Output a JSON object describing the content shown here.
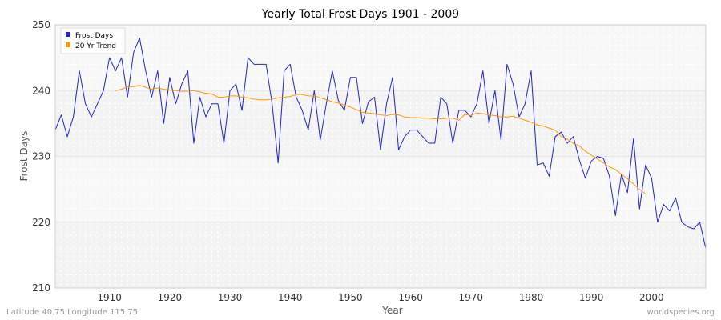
{
  "chart_data": {
    "type": "line",
    "title": "Yearly Total Frost Days 1901 - 2009",
    "xlabel": "Year",
    "ylabel": "Frost Days",
    "xlim": [
      1901,
      2009
    ],
    "ylim": [
      210,
      250
    ],
    "x_ticks": [
      1910,
      1920,
      1930,
      1940,
      1950,
      1960,
      1970,
      1980,
      1990,
      2000
    ],
    "y_ticks": [
      210,
      220,
      230,
      240,
      250
    ],
    "grid": true,
    "legend_position": "top-left",
    "series": [
      {
        "name": "Frost Days",
        "color": "#2222cc",
        "x": [
          1901,
          1902,
          1903,
          1904,
          1905,
          1906,
          1907,
          1908,
          1909,
          1910,
          1911,
          1912,
          1913,
          1914,
          1915,
          1916,
          1917,
          1918,
          1919,
          1920,
          1921,
          1922,
          1923,
          1924,
          1925,
          1926,
          1927,
          1928,
          1929,
          1930,
          1931,
          1932,
          1933,
          1934,
          1935,
          1936,
          1937,
          1938,
          1939,
          1940,
          1941,
          1942,
          1943,
          1944,
          1945,
          1946,
          1947,
          1948,
          1949,
          1950,
          1951,
          1952,
          1953,
          1954,
          1955,
          1956,
          1957,
          1958,
          1959,
          1960,
          1961,
          1962,
          1963,
          1964,
          1965,
          1966,
          1967,
          1968,
          1969,
          1970,
          1971,
          1972,
          1973,
          1974,
          1975,
          1976,
          1977,
          1978,
          1979,
          1980,
          1981,
          1982,
          1983,
          1984,
          1985,
          1986,
          1987,
          1988,
          1989,
          1990,
          1991,
          1992,
          1993,
          1994,
          1995,
          1996,
          1997,
          1998,
          1999,
          2000,
          2001,
          2002,
          2003,
          2004,
          2005,
          2006,
          2007,
          2008,
          2009
        ],
        "y": [
          234,
          236.3,
          233,
          236,
          243,
          238,
          236,
          238,
          240,
          245,
          243,
          245,
          239,
          245.8,
          248,
          243,
          239,
          243,
          235,
          242,
          238,
          241,
          243,
          232,
          239,
          236,
          238,
          238,
          232,
          240,
          241,
          237,
          245,
          244,
          244,
          244,
          238,
          229,
          243,
          244,
          239,
          237,
          234,
          240,
          232.5,
          238,
          243,
          238.5,
          237,
          242,
          242,
          235,
          238.3,
          239,
          231,
          238,
          242,
          231,
          233,
          234,
          234,
          233,
          232,
          232,
          239,
          238,
          232,
          237,
          237,
          236,
          238,
          243,
          235,
          240,
          232.5,
          244,
          241,
          236,
          238,
          243,
          228.7,
          229,
          227,
          233,
          233.7,
          232,
          233,
          229.5,
          226.7,
          229.3,
          230,
          229.7,
          227,
          221,
          227.3,
          224.5,
          232.7,
          222,
          228.7,
          226.7,
          220,
          222.7,
          221.7,
          223.7,
          220,
          219.3,
          219,
          220,
          216
        ]
      },
      {
        "name": "20 Yr Trend",
        "color": "#ff9900",
        "x": [
          1911,
          1912,
          1913,
          1914,
          1915,
          1916,
          1917,
          1918,
          1919,
          1920,
          1921,
          1922,
          1923,
          1924,
          1925,
          1926,
          1927,
          1928,
          1929,
          1930,
          1931,
          1932,
          1933,
          1934,
          1935,
          1936,
          1937,
          1938,
          1939,
          1940,
          1941,
          1942,
          1943,
          1944,
          1945,
          1946,
          1947,
          1948,
          1949,
          1950,
          1951,
          1952,
          1953,
          1954,
          1955,
          1956,
          1957,
          1958,
          1959,
          1960,
          1961,
          1962,
          1963,
          1964,
          1965,
          1966,
          1967,
          1968,
          1969,
          1970,
          1971,
          1972,
          1973,
          1974,
          1975,
          1976,
          1977,
          1978,
          1979,
          1980,
          1981,
          1982,
          1983,
          1984,
          1985,
          1986,
          1987,
          1988,
          1989,
          1990,
          1991,
          1992,
          1993,
          1994,
          1995,
          1996,
          1997,
          1998,
          1999
        ],
        "y": [
          240,
          240.2,
          240.6,
          240.6,
          240.8,
          240.5,
          240.2,
          240.4,
          240.2,
          240.1,
          240,
          239.9,
          239.9,
          240,
          239.8,
          239.6,
          239.5,
          239,
          239,
          239.2,
          239.2,
          239,
          238.9,
          238.7,
          238.6,
          238.6,
          238.7,
          238.9,
          239,
          239.1,
          239.4,
          239.4,
          239.2,
          239.2,
          238.9,
          238.6,
          238.3,
          238.1,
          237.8,
          237.5,
          237.1,
          236.7,
          236.6,
          236.5,
          236.3,
          236.2,
          236.4,
          236.3,
          236,
          235.9,
          235.9,
          235.8,
          235.8,
          235.7,
          235.7,
          235.8,
          235.8,
          235.5,
          236.4,
          236.2,
          236.6,
          236.5,
          236.3,
          236.2,
          236,
          236,
          236.1,
          235.8,
          235.5,
          235.2,
          234.8,
          234.6,
          234.3,
          234,
          233,
          232.6,
          232,
          231.6,
          230.8,
          230.2,
          229.6,
          229,
          228.4,
          228,
          227.3,
          226.6,
          225.8,
          225,
          224.3
        ]
      }
    ]
  },
  "footer": {
    "location": "Latitude 40.75 Longitude 115.75",
    "source": "worldspecies.org"
  }
}
